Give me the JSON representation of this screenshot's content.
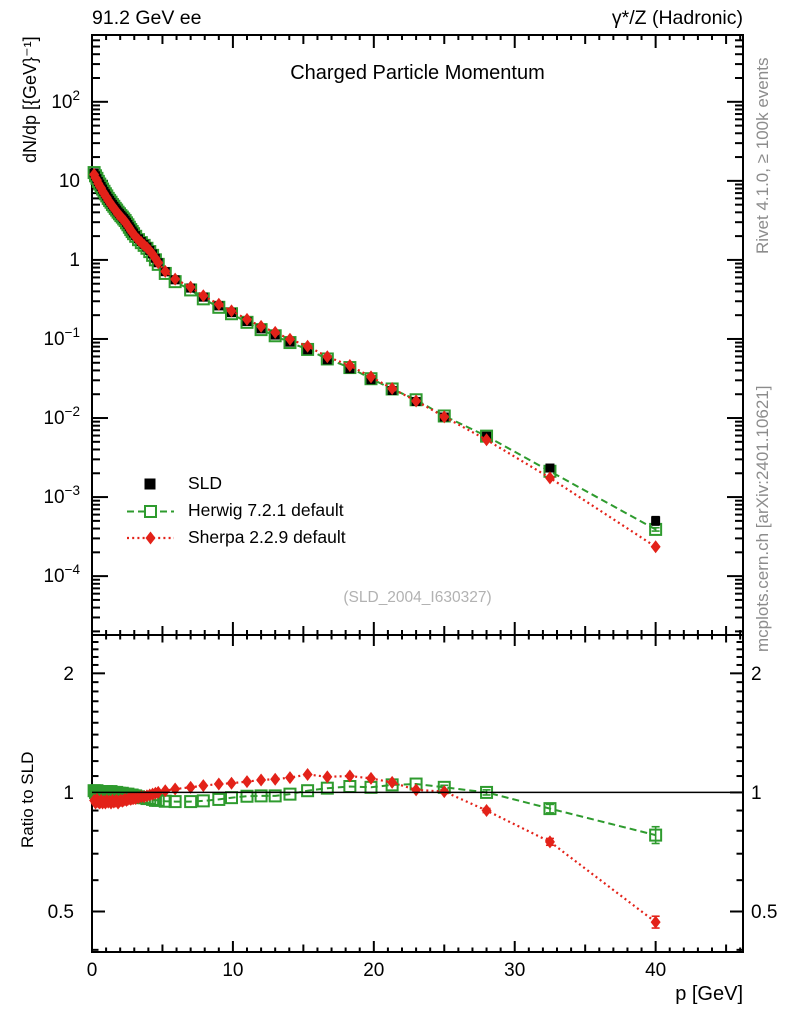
{
  "header": {
    "left": "91.2 GeV ee",
    "right": "γ*/Z (Hadronic)"
  },
  "side_notes": {
    "top_right": "Rivet 4.1.0, ≥ 100k events",
    "bottom_right": "mcplots.cern.ch [arXiv:2401.10621]"
  },
  "watermark": "(SLD_2004_I630327)",
  "chart_data": {
    "type": "line",
    "title": "Charged Particle Momentum",
    "xlabel": "p [GeV]",
    "ylabel_main": "dN/dp [{GeV}⁻¹]",
    "ylabel_ratio": "Ratio to SLD",
    "x_range": [
      0,
      46.2
    ],
    "x_major_ticks": [
      0,
      10,
      20,
      30,
      40
    ],
    "y_main_log_range": [
      1.8e-05,
      700
    ],
    "y_main_labeled_decades": [
      2,
      1,
      0,
      -1,
      -2,
      -3,
      -4
    ],
    "y_ratio_log_range": [
      0.395,
      2.5
    ],
    "y_ratio_major_ticks": [
      0.5,
      1,
      2
    ],
    "p": [
      0.15,
      0.25,
      0.35,
      0.45,
      0.55,
      0.65,
      0.75,
      0.85,
      0.95,
      1.05,
      1.15,
      1.25,
      1.35,
      1.45,
      1.55,
      1.65,
      1.75,
      1.85,
      1.95,
      2.05,
      2.15,
      2.25,
      2.35,
      2.45,
      2.55,
      2.65,
      2.75,
      2.85,
      2.95,
      3.1,
      3.3,
      3.5,
      3.7,
      3.9,
      4.1,
      4.3,
      4.5,
      4.7,
      5.2,
      5.9,
      7.0,
      7.9,
      9.0,
      9.9,
      11.0,
      12.0,
      13.0,
      14.05,
      15.3,
      16.7,
      18.3,
      19.8,
      21.3,
      23.0,
      25.0,
      28.0,
      32.5,
      40.0
    ],
    "series": [
      {
        "name": "SLD",
        "role": "data",
        "color": "#000000",
        "marker": "filled-square",
        "values": [
          12.6,
          11.59,
          10.66,
          9.8,
          9.11,
          8.48,
          7.88,
          7.35,
          6.87,
          6.42,
          6.0,
          5.66,
          5.34,
          5.04,
          4.77,
          4.51,
          4.27,
          4.04,
          3.85,
          3.67,
          3.5,
          3.335,
          3.18,
          2.99,
          2.81,
          2.63,
          2.47,
          2.32,
          2.19,
          2.03,
          1.85,
          1.705,
          1.575,
          1.455,
          1.32,
          1.19,
          1.05,
          0.92,
          0.71,
          0.56,
          0.44,
          0.338,
          0.262,
          0.215,
          0.166,
          0.134,
          0.112,
          0.091,
          0.073,
          0.0545,
          0.042,
          0.0305,
          0.0223,
          0.0162,
          0.0103,
          0.0059,
          0.00233,
          0.0005
        ],
        "err_frac": [
          0,
          0,
          0,
          0,
          0,
          0,
          0,
          0,
          0,
          0,
          0,
          0,
          0,
          0,
          0,
          0,
          0,
          0,
          0,
          0,
          0,
          0,
          0,
          0,
          0,
          0,
          0,
          0,
          0,
          0,
          0,
          0,
          0,
          0,
          0,
          0,
          0,
          0,
          0,
          0,
          0,
          0,
          0,
          0,
          0.02,
          0.02,
          0.02,
          0.03,
          0.03,
          0.03,
          0.04,
          0.04,
          0.05,
          0.05,
          0.06,
          0.07,
          0.09,
          0.13
        ]
      },
      {
        "name": "Herwig 7.2.1 default",
        "role": "mc",
        "color": "#2e9b2e",
        "marker": "open-square",
        "line": "dashed",
        "ratio": [
          1.01,
          1.0,
          1.01,
          1.005,
          1.0,
          1.005,
          1.0,
          1.005,
          1.0,
          1.005,
          1.0,
          1.0,
          1.005,
          0.995,
          1.0,
          0.995,
          1.0,
          0.995,
          0.995,
          0.99,
          0.995,
          0.99,
          0.99,
          0.985,
          0.99,
          0.985,
          0.98,
          0.985,
          0.98,
          0.98,
          0.975,
          0.97,
          0.97,
          0.965,
          0.965,
          0.96,
          0.955,
          0.955,
          0.95,
          0.948,
          0.948,
          0.952,
          0.96,
          0.97,
          0.978,
          0.98,
          0.98,
          0.99,
          1.01,
          1.025,
          1.035,
          1.03,
          1.045,
          1.05,
          1.03,
          1.0,
          0.91,
          0.78
        ],
        "ratio_err": [
          0,
          0,
          0,
          0,
          0,
          0,
          0,
          0,
          0,
          0,
          0,
          0,
          0,
          0,
          0,
          0,
          0,
          0,
          0,
          0,
          0,
          0,
          0,
          0,
          0,
          0,
          0,
          0,
          0,
          0,
          0,
          0,
          0,
          0,
          0,
          0,
          0,
          0,
          0,
          0,
          0,
          0,
          0,
          0,
          0,
          0,
          0,
          0,
          0,
          0,
          0,
          0,
          0,
          0,
          0.012,
          0.015,
          0.025,
          0.05
        ]
      },
      {
        "name": "Sherpa 2.2.9 default",
        "role": "mc",
        "color": "#e32219",
        "marker": "filled-diamond",
        "line": "dotted",
        "ratio": [
          0.955,
          0.94,
          0.96,
          0.945,
          0.94,
          0.955,
          0.94,
          0.95,
          0.94,
          0.955,
          0.945,
          0.95,
          0.94,
          0.955,
          0.945,
          0.95,
          0.955,
          0.94,
          0.95,
          0.955,
          0.95,
          0.955,
          0.96,
          0.955,
          0.96,
          0.965,
          0.96,
          0.965,
          0.965,
          0.965,
          0.97,
          0.975,
          0.975,
          0.98,
          0.985,
          0.99,
          0.995,
          1.0,
          1.01,
          1.02,
          1.03,
          1.04,
          1.05,
          1.055,
          1.065,
          1.075,
          1.08,
          1.09,
          1.11,
          1.095,
          1.1,
          1.085,
          1.06,
          1.015,
          1.005,
          0.9,
          0.75,
          0.47
        ],
        "ratio_err": [
          0,
          0,
          0,
          0,
          0,
          0,
          0,
          0,
          0,
          0,
          0,
          0,
          0,
          0,
          0,
          0,
          0,
          0,
          0,
          0,
          0,
          0,
          0,
          0,
          0,
          0,
          0,
          0,
          0,
          0,
          0,
          0,
          0,
          0,
          0,
          0,
          0,
          0,
          0,
          0,
          0,
          0,
          0,
          0,
          0,
          0,
          0,
          0,
          0,
          0,
          0,
          0,
          0,
          0,
          0,
          0.012,
          0.02,
          0.035
        ]
      }
    ]
  }
}
